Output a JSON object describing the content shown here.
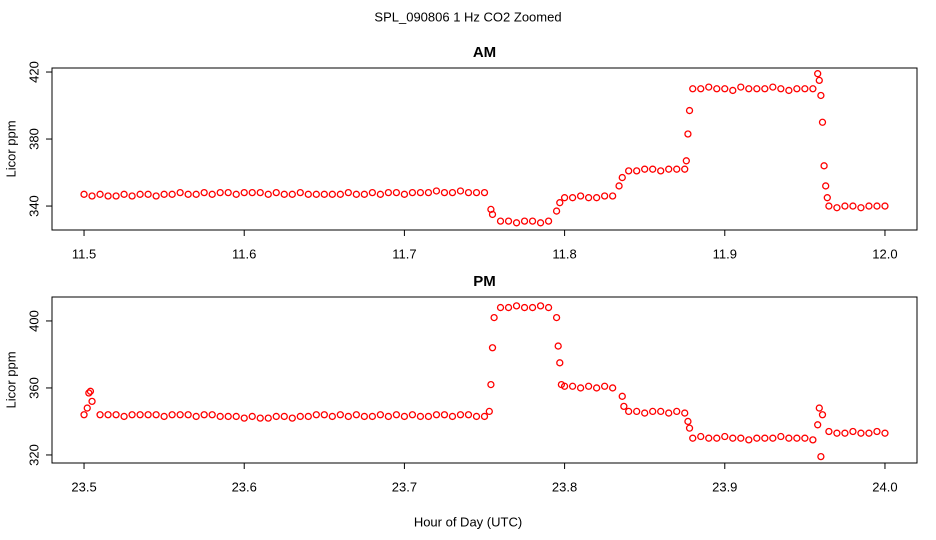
{
  "title": "SPL_090806  1 Hz CO2 Zoomed",
  "xlabel": "Hour of Day (UTC)",
  "chart_data": [
    {
      "type": "scatter",
      "title": "AM",
      "ylabel": "Licor ppm",
      "color": "#ff0000",
      "marker": "open-circle",
      "xlim": [
        11.48,
        12.02
      ],
      "xticks": [
        11.5,
        11.6,
        11.7,
        11.8,
        11.9,
        {
          "value": 12.0,
          "label": "12.0"
        }
      ],
      "ylim": [
        325.7,
        422.4
      ],
      "yticks": [
        340,
        380,
        420
      ],
      "x": [
        11.5,
        11.505,
        11.51,
        11.515,
        11.52,
        11.525,
        11.53,
        11.535,
        11.54,
        11.545,
        11.55,
        11.555,
        11.56,
        11.565,
        11.57,
        11.575,
        11.58,
        11.585,
        11.59,
        11.595,
        11.6,
        11.605,
        11.61,
        11.615,
        11.62,
        11.625,
        11.63,
        11.635,
        11.64,
        11.645,
        11.65,
        11.655,
        11.66,
        11.665,
        11.67,
        11.675,
        11.68,
        11.685,
        11.69,
        11.695,
        11.7,
        11.705,
        11.71,
        11.715,
        11.72,
        11.725,
        11.73,
        11.735,
        11.74,
        11.745,
        11.75,
        11.754,
        11.755,
        11.76,
        11.765,
        11.77,
        11.775,
        11.78,
        11.785,
        11.79,
        11.795,
        11.797,
        11.8,
        11.805,
        11.81,
        11.815,
        11.82,
        11.825,
        11.83,
        11.834,
        11.836,
        11.84,
        11.845,
        11.85,
        11.855,
        11.86,
        11.865,
        11.87,
        11.875,
        11.876,
        11.877,
        11.878,
        11.88,
        11.885,
        11.89,
        11.895,
        11.9,
        11.905,
        11.91,
        11.915,
        11.92,
        11.925,
        11.93,
        11.935,
        11.94,
        11.945,
        11.95,
        11.955,
        11.958,
        11.959,
        11.96,
        11.961,
        11.962,
        11.963,
        11.964,
        11.965,
        11.97,
        11.975,
        11.98,
        11.985,
        11.99,
        11.995,
        12.0
      ],
      "values": [
        347,
        346,
        347,
        346,
        346,
        347,
        346,
        347,
        347,
        346,
        347,
        347,
        348,
        347,
        347,
        348,
        347,
        348,
        348,
        347,
        348,
        348,
        348,
        347,
        348,
        347,
        347,
        348,
        347,
        347,
        347,
        347,
        347,
        348,
        347,
        347,
        348,
        347,
        348,
        348,
        347,
        348,
        348,
        348,
        349,
        348,
        348,
        349,
        348,
        348,
        348,
        338,
        335,
        331,
        331,
        330,
        331,
        331,
        330,
        331,
        337,
        342,
        345,
        345,
        346,
        345,
        345,
        346,
        346,
        352,
        357,
        361,
        361,
        362,
        362,
        361,
        362,
        362,
        362,
        367,
        383,
        397,
        410,
        410,
        411,
        410,
        410,
        409,
        411,
        410,
        410,
        410,
        411,
        410,
        409,
        410,
        410,
        410,
        419,
        415,
        406,
        390,
        364,
        352,
        345,
        340,
        339,
        340,
        340,
        339,
        340,
        340,
        340
      ]
    },
    {
      "type": "scatter",
      "title": "PM",
      "ylabel": "Licor ppm",
      "color": "#ff0000",
      "marker": "open-circle",
      "xlim": [
        23.48,
        24.02
      ],
      "xticks": [
        23.5,
        23.6,
        23.7,
        23.8,
        23.9,
        {
          "value": 24.0,
          "label": "24.0"
        }
      ],
      "ylim": [
        315.2,
        414.3
      ],
      "yticks": [
        320,
        360,
        400
      ],
      "x": [
        23.5,
        23.502,
        23.503,
        23.504,
        23.505,
        23.51,
        23.515,
        23.52,
        23.525,
        23.53,
        23.535,
        23.54,
        23.545,
        23.55,
        23.555,
        23.56,
        23.565,
        23.57,
        23.575,
        23.58,
        23.585,
        23.59,
        23.595,
        23.6,
        23.605,
        23.61,
        23.615,
        23.62,
        23.625,
        23.63,
        23.635,
        23.64,
        23.645,
        23.65,
        23.655,
        23.66,
        23.665,
        23.67,
        23.675,
        23.68,
        23.685,
        23.69,
        23.695,
        23.7,
        23.705,
        23.71,
        23.715,
        23.72,
        23.725,
        23.73,
        23.735,
        23.74,
        23.745,
        23.75,
        23.753,
        23.754,
        23.755,
        23.756,
        23.76,
        23.765,
        23.77,
        23.775,
        23.78,
        23.785,
        23.79,
        23.795,
        23.796,
        23.797,
        23.798,
        23.8,
        23.805,
        23.81,
        23.815,
        23.82,
        23.825,
        23.83,
        23.836,
        23.837,
        23.84,
        23.845,
        23.85,
        23.855,
        23.86,
        23.865,
        23.87,
        23.875,
        23.877,
        23.878,
        23.88,
        23.885,
        23.89,
        23.895,
        23.9,
        23.905,
        23.91,
        23.915,
        23.92,
        23.925,
        23.93,
        23.935,
        23.94,
        23.945,
        23.95,
        23.955,
        23.958,
        23.959,
        23.96,
        23.961,
        23.965,
        23.97,
        23.975,
        23.98,
        23.985,
        23.99,
        23.995,
        24.0
      ],
      "values": [
        344,
        348,
        357,
        358,
        352,
        344,
        344,
        344,
        343,
        344,
        344,
        344,
        344,
        343,
        344,
        344,
        344,
        343,
        344,
        344,
        343,
        343,
        343,
        342,
        343,
        342,
        342,
        343,
        343,
        342,
        343,
        343,
        344,
        344,
        343,
        344,
        343,
        344,
        343,
        343,
        344,
        343,
        344,
        343,
        344,
        343,
        343,
        344,
        344,
        343,
        344,
        344,
        343,
        343,
        346,
        362,
        384,
        402,
        408,
        408,
        409,
        408,
        408,
        409,
        408,
        402,
        385,
        375,
        362,
        361,
        361,
        360,
        361,
        360,
        361,
        360,
        355,
        349,
        346,
        346,
        345,
        346,
        346,
        345,
        346,
        345,
        340,
        336,
        330,
        331,
        330,
        330,
        331,
        330,
        330,
        329,
        330,
        330,
        330,
        331,
        330,
        330,
        330,
        329,
        338,
        348,
        319,
        344,
        334,
        333,
        333,
        334,
        333,
        333,
        334,
        333
      ]
    }
  ]
}
